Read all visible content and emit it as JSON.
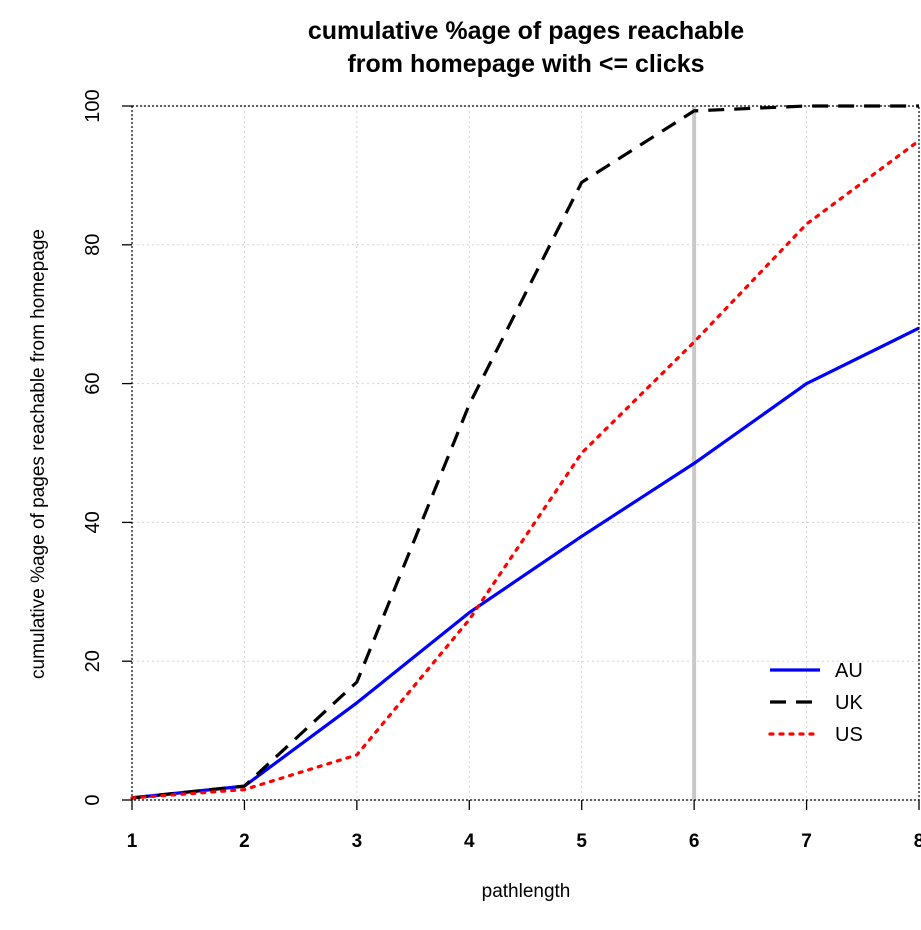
{
  "chart_data": {
    "type": "line",
    "title": "cumulative %age of pages reachable",
    "subtitle": "from homepage with <= clicks",
    "xlabel": "pathlength",
    "ylabel": "cumulative %age of pages reachable from homepage",
    "xlim": [
      1,
      8
    ],
    "ylim": [
      0,
      100
    ],
    "x_ticks": [
      "1",
      "2",
      "3",
      "4",
      "5",
      "6",
      "7",
      "8"
    ],
    "y_ticks": [
      "0",
      "20",
      "40",
      "60",
      "80",
      "100"
    ],
    "grid": true,
    "vline": {
      "x": 6,
      "color": "#c8c8c8"
    },
    "legend_position": "bottom-right",
    "x": [
      1,
      2,
      3,
      4,
      5,
      6,
      7,
      8
    ],
    "series": [
      {
        "name": "AU",
        "color": "#0000ff",
        "style": "solid",
        "values": [
          0.3,
          2,
          14,
          27,
          38,
          48.5,
          60,
          68
        ]
      },
      {
        "name": "UK",
        "color": "#000000",
        "style": "dashed",
        "values": [
          0.3,
          2,
          17,
          57,
          89,
          99.3,
          100,
          100
        ]
      },
      {
        "name": "US",
        "color": "#ff0000",
        "style": "dotted",
        "values": [
          0.3,
          1.5,
          6.5,
          26,
          50,
          66,
          83,
          95
        ]
      }
    ]
  }
}
